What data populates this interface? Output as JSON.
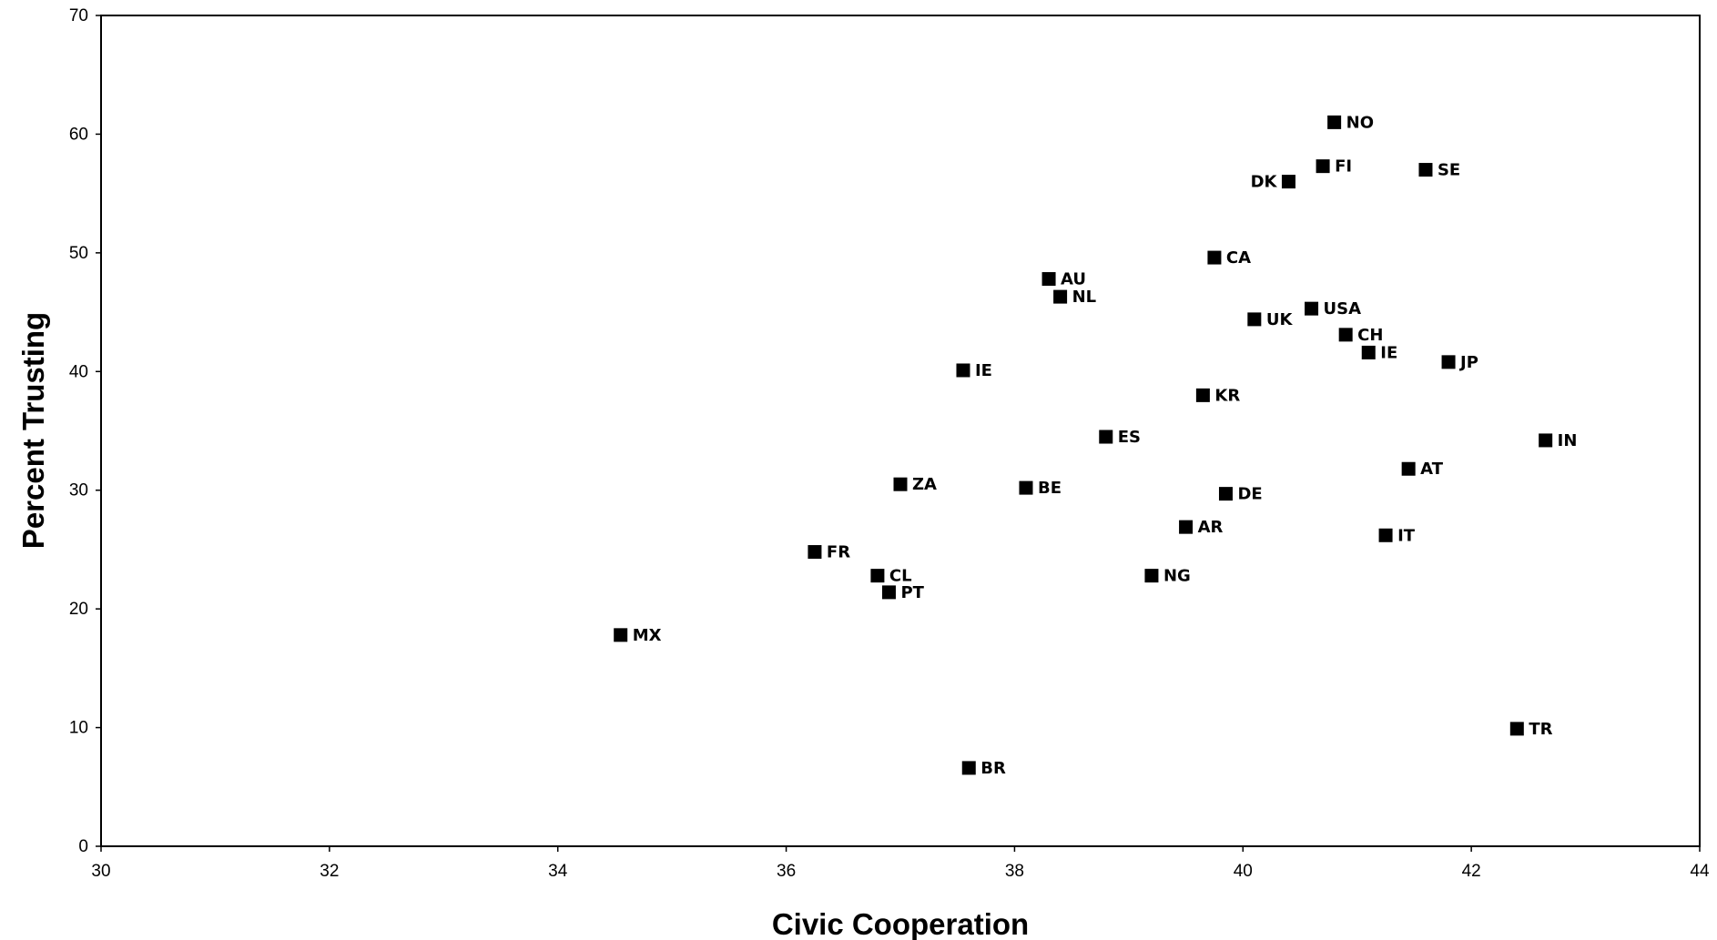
{
  "chart_data": {
    "type": "scatter",
    "xlabel": "Civic Cooperation",
    "ylabel": "Percent Trusting",
    "xlim": [
      30,
      44
    ],
    "ylim": [
      0,
      70
    ],
    "x_ticks": [
      30,
      32,
      34,
      36,
      38,
      40,
      42,
      44
    ],
    "y_ticks": [
      0,
      10,
      20,
      30,
      40,
      50,
      60,
      70
    ],
    "grid": false,
    "legend": false,
    "marker": "square",
    "marker_color": "#000000",
    "points": [
      {
        "label": "NO",
        "x": 40.8,
        "y": 61.0
      },
      {
        "label": "FI",
        "x": 40.7,
        "y": 57.3
      },
      {
        "label": "SE",
        "x": 41.6,
        "y": 57.0
      },
      {
        "label": "DK",
        "x": 40.4,
        "y": 56.0
      },
      {
        "label": "CA",
        "x": 39.75,
        "y": 49.6
      },
      {
        "label": "AU",
        "x": 38.3,
        "y": 47.8
      },
      {
        "label": "NL",
        "x": 38.4,
        "y": 46.3
      },
      {
        "label": "USA",
        "x": 40.6,
        "y": 45.3
      },
      {
        "label": "UK",
        "x": 40.1,
        "y": 44.4
      },
      {
        "label": "CH",
        "x": 40.9,
        "y": 43.1
      },
      {
        "label": "IE",
        "x": 41.1,
        "y": 41.6
      },
      {
        "label": "JP",
        "x": 41.8,
        "y": 40.8
      },
      {
        "label": "IE",
        "x": 37.55,
        "y": 40.1
      },
      {
        "label": "KR",
        "x": 39.65,
        "y": 38.0
      },
      {
        "label": "ES",
        "x": 38.8,
        "y": 34.5
      },
      {
        "label": "IN",
        "x": 42.65,
        "y": 34.2
      },
      {
        "label": "AT",
        "x": 41.45,
        "y": 31.8
      },
      {
        "label": "ZA",
        "x": 37.0,
        "y": 30.5
      },
      {
        "label": "BE",
        "x": 38.1,
        "y": 30.2
      },
      {
        "label": "DE",
        "x": 39.85,
        "y": 29.7
      },
      {
        "label": "AR",
        "x": 39.5,
        "y": 26.9
      },
      {
        "label": "IT",
        "x": 41.25,
        "y": 26.2
      },
      {
        "label": "FR",
        "x": 36.25,
        "y": 24.8
      },
      {
        "label": "CL",
        "x": 36.8,
        "y": 22.8
      },
      {
        "label": "NG",
        "x": 39.2,
        "y": 22.8
      },
      {
        "label": "PT",
        "x": 36.9,
        "y": 21.4
      },
      {
        "label": "MX",
        "x": 34.55,
        "y": 17.8
      },
      {
        "label": "TR",
        "x": 42.4,
        "y": 9.9
      },
      {
        "label": "BR",
        "x": 37.6,
        "y": 6.6
      }
    ]
  }
}
